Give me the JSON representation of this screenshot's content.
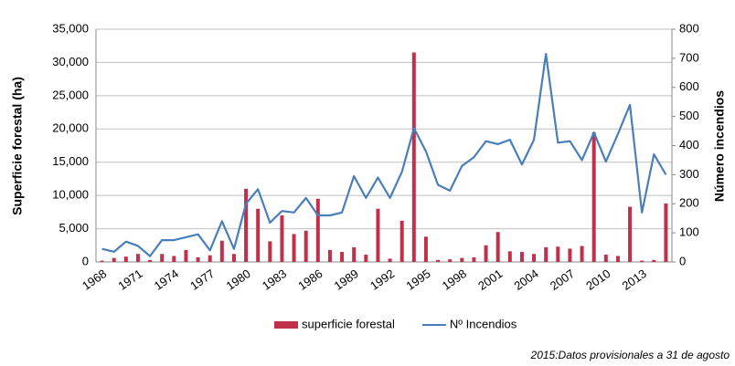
{
  "chart_data": {
    "type": "bar_line",
    "ylabel": "Superficie forestal (ha)",
    "y2label": "Número incendios",
    "categories": [
      "1968",
      null,
      null,
      "1971",
      null,
      null,
      "1974",
      null,
      null,
      "1977",
      null,
      null,
      "1980",
      null,
      null,
      "1983",
      null,
      null,
      "1986",
      null,
      null,
      "1989",
      null,
      null,
      "1992",
      null,
      null,
      "1995",
      null,
      null,
      "1998",
      null,
      null,
      "2001",
      null,
      null,
      "2004",
      null,
      null,
      "2007",
      null,
      null,
      "2010",
      null,
      null,
      "2013",
      null,
      null
    ],
    "series": [
      {
        "name": "superficie forestal",
        "color": "#c0304a",
        "kind": "bar",
        "values": [
          200,
          600,
          800,
          1200,
          300,
          1200,
          900,
          1800,
          700,
          1000,
          3200,
          1200,
          11000,
          8000,
          3100,
          7000,
          4200,
          4700,
          9500,
          1800,
          1500,
          2200,
          1100,
          8000,
          500,
          6200,
          31500,
          3800,
          300,
          400,
          600,
          700,
          2500,
          4500,
          1600,
          1500,
          1200,
          2200,
          2300,
          2000,
          2400,
          19500,
          1100,
          900,
          8300,
          200,
          300,
          8800
        ]
      },
      {
        "name": "Nº Incendios",
        "color": "#4a7ebb",
        "kind": "line",
        "axis": "y2",
        "values": [
          45,
          35,
          70,
          55,
          20,
          75,
          75,
          85,
          95,
          40,
          140,
          45,
          200,
          250,
          135,
          175,
          170,
          220,
          160,
          160,
          170,
          295,
          220,
          290,
          220,
          310,
          460,
          380,
          265,
          245,
          330,
          360,
          415,
          405,
          420,
          335,
          420,
          715,
          410,
          415,
          350,
          445,
          345,
          440,
          540,
          170,
          370,
          300
        ]
      }
    ],
    "ylim": [
      0,
      35000
    ],
    "yticks": [
      0,
      {
        "value": 5000,
        "label": "5,000"
      },
      {
        "value": 10000,
        "label": "10,000"
      },
      {
        "value": 15000,
        "label": "15,000"
      },
      {
        "value": 20000,
        "label": "20,000"
      },
      {
        "value": 25000,
        "label": "25,000"
      },
      {
        "value": 30000,
        "label": "30,000"
      },
      {
        "value": 35000,
        "label": "35,000"
      }
    ],
    "y2lim": [
      0,
      800
    ],
    "y2ticks": [
      0,
      100,
      200,
      300,
      400,
      500,
      600,
      700,
      800
    ],
    "grid": true,
    "legend": "bottom",
    "annotation": "2015:Datos provisionales a 31 de agosto"
  }
}
